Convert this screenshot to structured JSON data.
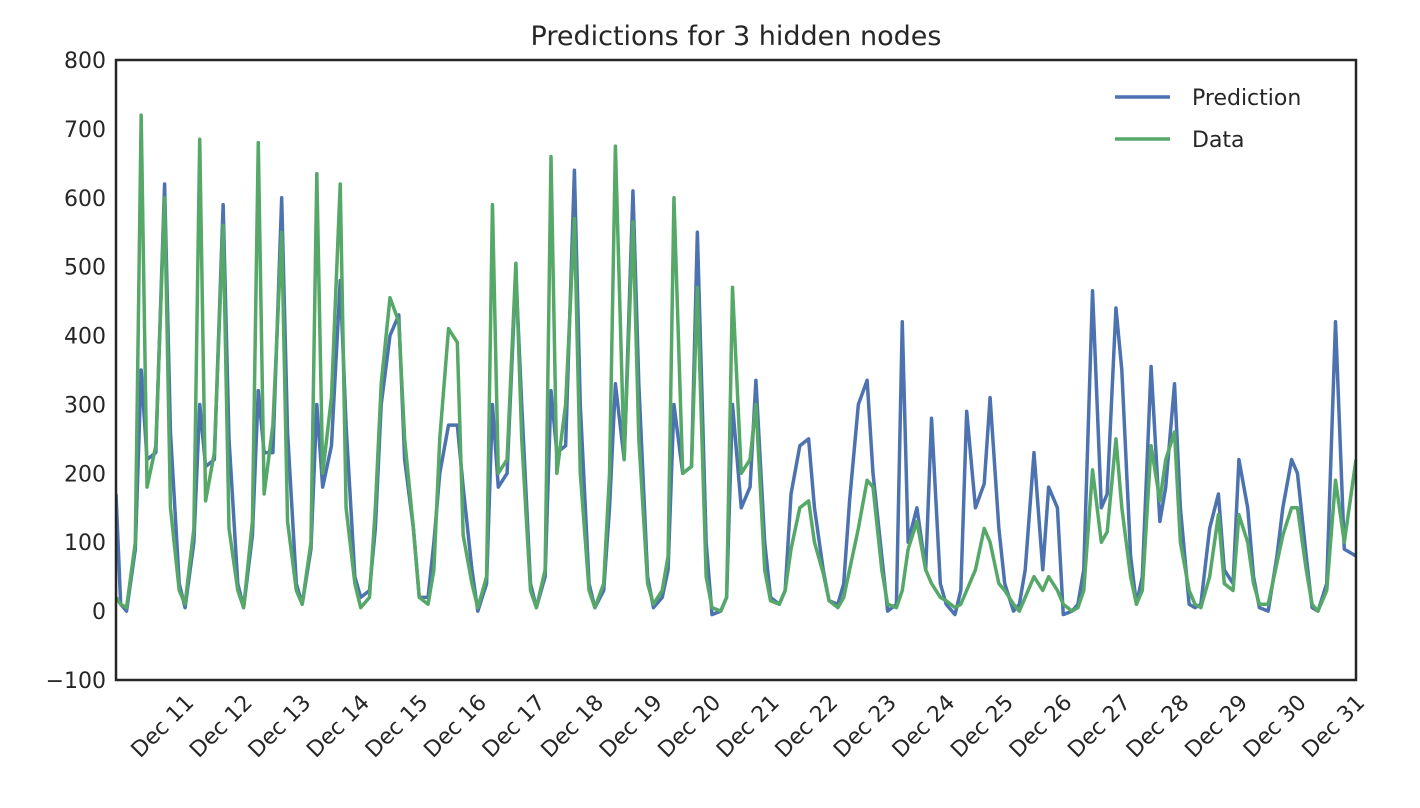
{
  "chart_data": {
    "type": "line",
    "title": "Predictions for 3 hidden nodes",
    "x": [
      9.82,
      9.9,
      10,
      10.15,
      10.25,
      10.35,
      10.5,
      10.65,
      10.75,
      10.9,
      11,
      11.15,
      11.25,
      11.35,
      11.5,
      11.65,
      11.75,
      11.9,
      12,
      12.15,
      12.25,
      12.35,
      12.5,
      12.65,
      12.75,
      12.9,
      13,
      13.15,
      13.25,
      13.35,
      13.5,
      13.65,
      13.75,
      13.9,
      14,
      14.15,
      14.25,
      14.35,
      14.5,
      14.65,
      14.75,
      14.9,
      15,
      15.15,
      15.25,
      15.35,
      15.5,
      15.65,
      15.75,
      15.9,
      16,
      16.15,
      16.25,
      16.35,
      16.5,
      16.65,
      16.75,
      16.9,
      17,
      17.15,
      17.25,
      17.35,
      17.5,
      17.65,
      17.75,
      17.9,
      18,
      18.15,
      18.25,
      18.35,
      18.5,
      18.65,
      18.75,
      18.9,
      19,
      19.15,
      19.25,
      19.35,
      19.5,
      19.65,
      19.75,
      19.9,
      20,
      20.15,
      20.25,
      20.35,
      20.5,
      20.65,
      20.75,
      20.9,
      21,
      21.15,
      21.25,
      21.35,
      21.5,
      21.65,
      21.75,
      21.9,
      22,
      22.15,
      22.25,
      22.35,
      22.5,
      22.65,
      22.75,
      22.9,
      23,
      23.15,
      23.25,
      23.35,
      23.5,
      23.65,
      23.75,
      23.9,
      24,
      24.15,
      24.25,
      24.35,
      24.5,
      24.65,
      24.75,
      24.9,
      25,
      25.15,
      25.25,
      25.35,
      25.5,
      25.65,
      25.75,
      25.9,
      26,
      26.15,
      26.25,
      26.35,
      26.5,
      26.65,
      26.75,
      26.9,
      27,
      27.15,
      27.25,
      27.35,
      27.5,
      27.65,
      27.75,
      27.9,
      28,
      28.15,
      28.25,
      28.35,
      28.5,
      28.65,
      28.75,
      28.9,
      29,
      29.15,
      29.25,
      29.35,
      29.5,
      29.65,
      29.75,
      29.9,
      30,
      30.15,
      30.25,
      30.35,
      30.5,
      30.65,
      30.8,
      31
    ],
    "series": [
      {
        "name": "Prediction",
        "color": "#4c72b0",
        "values": [
          170,
          10,
          0,
          90,
          350,
          220,
          230,
          620,
          260,
          40,
          5,
          100,
          300,
          210,
          220,
          590,
          250,
          40,
          5,
          110,
          320,
          230,
          230,
          600,
          260,
          40,
          10,
          90,
          300,
          180,
          240,
          480,
          270,
          50,
          20,
          30,
          120,
          300,
          400,
          430,
          220,
          120,
          20,
          20,
          100,
          200,
          270,
          270,
          180,
          60,
          0,
          40,
          300,
          180,
          200,
          490,
          300,
          40,
          5,
          50,
          320,
          230,
          240,
          640,
          300,
          40,
          5,
          30,
          150,
          330,
          220,
          610,
          330,
          50,
          5,
          20,
          60,
          300,
          200,
          210,
          550,
          100,
          -5,
          0,
          20,
          300,
          150,
          180,
          335,
          100,
          20,
          10,
          30,
          170,
          240,
          250,
          150,
          60,
          15,
          10,
          40,
          160,
          300,
          335,
          200,
          80,
          0,
          10,
          420,
          100,
          150,
          60,
          280,
          40,
          10,
          -5,
          30,
          290,
          150,
          185,
          310,
          120,
          40,
          0,
          10,
          60,
          230,
          60,
          180,
          150,
          -5,
          0,
          10,
          60,
          465,
          150,
          170,
          440,
          350,
          80,
          10,
          50,
          355,
          130,
          180,
          330,
          150,
          10,
          5,
          10,
          120,
          170,
          60,
          40,
          220,
          150,
          50,
          5,
          0,
          80,
          150,
          220,
          200,
          80,
          5,
          0,
          40,
          420,
          90,
          80
        ]
      },
      {
        "name": "Data",
        "color": "#55a868",
        "values": [
          20,
          10,
          5,
          100,
          720,
          180,
          240,
          600,
          150,
          30,
          10,
          120,
          685,
          160,
          230,
          560,
          120,
          30,
          5,
          130,
          680,
          170,
          270,
          550,
          130,
          30,
          10,
          100,
          635,
          200,
          310,
          620,
          150,
          40,
          5,
          20,
          150,
          330,
          455,
          420,
          250,
          120,
          20,
          10,
          60,
          250,
          410,
          390,
          110,
          40,
          5,
          50,
          590,
          200,
          220,
          505,
          250,
          30,
          5,
          60,
          660,
          200,
          300,
          570,
          200,
          30,
          5,
          40,
          200,
          675,
          220,
          565,
          250,
          40,
          10,
          30,
          80,
          600,
          200,
          210,
          470,
          50,
          5,
          0,
          20,
          470,
          200,
          220,
          300,
          60,
          15,
          10,
          30,
          90,
          150,
          160,
          100,
          55,
          15,
          5,
          20,
          60,
          120,
          190,
          180,
          60,
          10,
          5,
          30,
          90,
          130,
          60,
          40,
          20,
          15,
          5,
          10,
          30,
          60,
          120,
          100,
          40,
          30,
          10,
          0,
          20,
          50,
          30,
          50,
          30,
          10,
          0,
          5,
          30,
          205,
          100,
          115,
          250,
          150,
          50,
          10,
          30,
          240,
          160,
          220,
          260,
          100,
          30,
          10,
          5,
          50,
          140,
          40,
          30,
          140,
          100,
          40,
          10,
          10,
          70,
          110,
          150,
          150,
          60,
          10,
          0,
          30,
          190,
          100,
          220
        ]
      }
    ],
    "xlim": [
      9.82,
      31
    ],
    "xticks": [
      {
        "value": 11,
        "label": "Dec 11"
      },
      {
        "value": 12,
        "label": "Dec 12"
      },
      {
        "value": 13,
        "label": "Dec 13"
      },
      {
        "value": 14,
        "label": "Dec 14"
      },
      {
        "value": 15,
        "label": "Dec 15"
      },
      {
        "value": 16,
        "label": "Dec 16"
      },
      {
        "value": 17,
        "label": "Dec 17"
      },
      {
        "value": 18,
        "label": "Dec 18"
      },
      {
        "value": 19,
        "label": "Dec 19"
      },
      {
        "value": 20,
        "label": "Dec 20"
      },
      {
        "value": 21,
        "label": "Dec 21"
      },
      {
        "value": 22,
        "label": "Dec 22"
      },
      {
        "value": 23,
        "label": "Dec 23"
      },
      {
        "value": 24,
        "label": "Dec 24"
      },
      {
        "value": 25,
        "label": "Dec 25"
      },
      {
        "value": 26,
        "label": "Dec 26"
      },
      {
        "value": 27,
        "label": "Dec 27"
      },
      {
        "value": 28,
        "label": "Dec 28"
      },
      {
        "value": 29,
        "label": "Dec 29"
      },
      {
        "value": 30,
        "label": "Dec 30"
      },
      {
        "value": 31,
        "label": "Dec 31"
      }
    ],
    "ylim": [
      -100,
      800
    ],
    "yticks": [
      {
        "value": -100,
        "label": "−100"
      },
      0,
      100,
      200,
      300,
      400,
      500,
      600,
      700,
      800
    ],
    "legend": "upper right",
    "grid": false
  }
}
